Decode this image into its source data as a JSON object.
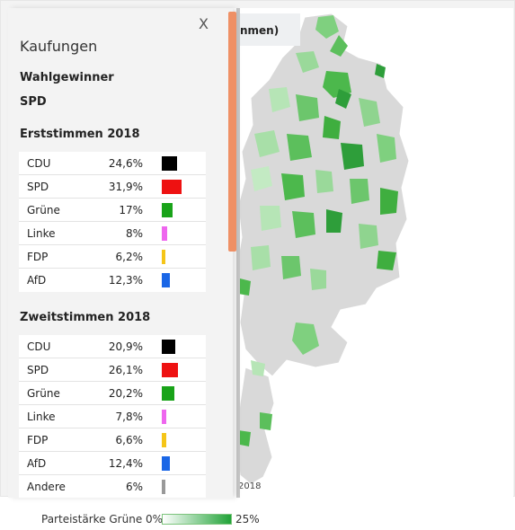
{
  "map": {
    "title_fragment": "nmen)",
    "footer_fragment": "2018"
  },
  "sidebar": {
    "close_label": "X",
    "region": "Kaufungen",
    "winner_label": "Wahlgewinner",
    "winner_value": "SPD",
    "erststimmen": {
      "title": "Erststimmen 2018",
      "rows": [
        {
          "party": "CDU",
          "value": "24,6%",
          "share": 24.6,
          "color": "#000000"
        },
        {
          "party": "SPD",
          "value": "31,9%",
          "share": 31.9,
          "color": "#ee1111"
        },
        {
          "party": "Grüne",
          "value": "17%",
          "share": 17.0,
          "color": "#19a319"
        },
        {
          "party": "Linke",
          "value": "8%",
          "share": 8.0,
          "color": "#ee66ee"
        },
        {
          "party": "FDP",
          "value": "6,2%",
          "share": 6.2,
          "color": "#f5c518"
        },
        {
          "party": "AfD",
          "value": "12,3%",
          "share": 12.3,
          "color": "#1a66e6"
        }
      ]
    },
    "zweitstimmen": {
      "title": "Zweitstimmen 2018",
      "rows": [
        {
          "party": "CDU",
          "value": "20,9%",
          "share": 20.9,
          "color": "#000000"
        },
        {
          "party": "SPD",
          "value": "26,1%",
          "share": 26.1,
          "color": "#ee1111"
        },
        {
          "party": "Grüne",
          "value": "20,2%",
          "share": 20.2,
          "color": "#19a319"
        },
        {
          "party": "Linke",
          "value": "7,8%",
          "share": 7.8,
          "color": "#ee66ee"
        },
        {
          "party": "FDP",
          "value": "6,6%",
          "share": 6.6,
          "color": "#f5c518"
        },
        {
          "party": "AfD",
          "value": "12,4%",
          "share": 12.4,
          "color": "#1a66e6"
        },
        {
          "party": "Andere",
          "value": "6%",
          "share": 6.0,
          "color": "#999999"
        }
      ]
    }
  },
  "legend": {
    "label": "Parteistärke Grüne 0%",
    "max_label": "25%",
    "color_min": "#ffffff",
    "color_max": "#21a338"
  }
}
